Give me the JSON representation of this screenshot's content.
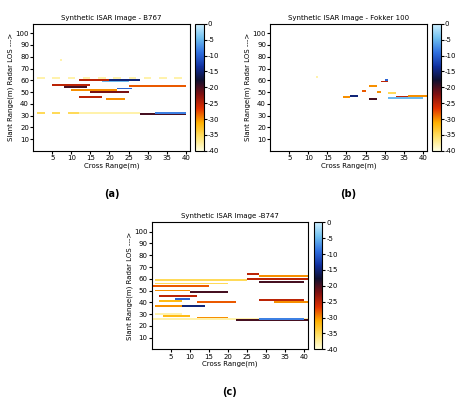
{
  "chart_data": [
    {
      "type": "heatmap",
      "title": "Synthetic ISAR Image - B767",
      "annotations": [
        "(a)"
      ],
      "xlabel": "Cross Range(m)",
      "ylabel": "Slant Range(m) Radar LOS --->",
      "xlim": [
        0,
        41
      ],
      "ylim": [
        0,
        108
      ],
      "xticks": [
        5,
        10,
        15,
        20,
        25,
        30,
        35,
        40
      ],
      "yticks": [
        10,
        20,
        30,
        40,
        50,
        60,
        70,
        80,
        90,
        100
      ],
      "colorbar_range": [
        -40,
        0
      ],
      "colorbar_ticks": [
        0,
        -5,
        -10,
        -15,
        -20,
        -25,
        -30,
        -35,
        -40
      ],
      "cells": [
        [
          1,
          3,
          62,
          -38
        ],
        [
          5,
          7,
          62,
          -38
        ],
        [
          9,
          11,
          62,
          -38
        ],
        [
          13,
          15,
          62,
          -38
        ],
        [
          17,
          19,
          62,
          -38
        ],
        [
          21,
          23,
          62,
          -38
        ],
        [
          25,
          27,
          62,
          -38
        ],
        [
          29,
          31,
          62,
          -38
        ],
        [
          33,
          35,
          62,
          -38
        ],
        [
          37,
          39,
          62,
          -38
        ],
        [
          12,
          20,
          60,
          -25
        ],
        [
          20,
          28,
          60,
          -15
        ],
        [
          18,
          25,
          59,
          -5
        ],
        [
          5,
          15,
          56,
          -25
        ],
        [
          25,
          40,
          55,
          -28
        ],
        [
          8,
          14,
          54,
          -20
        ],
        [
          10,
          22,
          52,
          -30
        ],
        [
          22,
          26,
          53,
          -10
        ],
        [
          15,
          25,
          50,
          -22
        ],
        [
          12,
          18,
          46,
          -25
        ],
        [
          19,
          24,
          44,
          -30
        ],
        [
          1,
          3,
          32,
          -35
        ],
        [
          5,
          7,
          32,
          -35
        ],
        [
          9,
          12,
          32,
          -35
        ],
        [
          12,
          28,
          32,
          -38
        ],
        [
          28,
          40,
          31,
          -20
        ],
        [
          32,
          40,
          32,
          -8
        ],
        [
          7,
          7.5,
          77,
          -38
        ]
      ]
    },
    {
      "type": "heatmap",
      "title": "Synthetic ISAR Image - Fokker 100",
      "annotations": [
        "(b)"
      ],
      "xlabel": "Cross Range(m)",
      "ylabel": "Slant Range(m) Radar LOS --->",
      "xlim": [
        0,
        41
      ],
      "ylim": [
        0,
        108
      ],
      "xticks": [
        5,
        10,
        15,
        20,
        25,
        30,
        35,
        40
      ],
      "yticks": [
        10,
        20,
        30,
        40,
        50,
        60,
        70,
        80,
        90,
        100
      ],
      "colorbar_range": [
        -40,
        0
      ],
      "colorbar_ticks": [
        0,
        -5,
        -10,
        -15,
        -20,
        -25,
        -30,
        -35,
        -40
      ],
      "cells": [
        [
          12,
          12.5,
          63,
          -38
        ],
        [
          29,
          31,
          59,
          -25
        ],
        [
          30,
          31,
          60,
          -10
        ],
        [
          26,
          28,
          55,
          -30
        ],
        [
          24,
          25,
          51,
          -28
        ],
        [
          28,
          29,
          50,
          -30
        ],
        [
          21,
          23,
          47,
          -15
        ],
        [
          19,
          21,
          46,
          -30
        ],
        [
          31,
          33,
          49,
          -35
        ],
        [
          26,
          28,
          44,
          -20
        ],
        [
          33,
          40,
          46,
          -25
        ],
        [
          31,
          40,
          45,
          -5
        ],
        [
          36,
          41,
          47,
          -30
        ]
      ]
    },
    {
      "type": "heatmap",
      "title": "Synthetic ISAR Image -B747",
      "annotations": [
        "(c)"
      ],
      "xlabel": "Cross Range(m)",
      "ylabel": "Slant Range(m) Radar LOS --->",
      "xlim": [
        0,
        41
      ],
      "ylim": [
        0,
        108
      ],
      "xticks": [
        5,
        10,
        15,
        20,
        25,
        30,
        35,
        40
      ],
      "yticks": [
        10,
        20,
        30,
        40,
        50,
        60,
        70,
        80,
        90,
        100
      ],
      "colorbar_range": [
        -40,
        0
      ],
      "colorbar_ticks": [
        0,
        -5,
        -10,
        -15,
        -20,
        -25,
        -30,
        -35,
        -40
      ],
      "cells": [
        [
          1,
          25,
          59,
          -35
        ],
        [
          25,
          28,
          64,
          -25
        ],
        [
          28,
          41,
          62,
          -30
        ],
        [
          25,
          41,
          60,
          -25
        ],
        [
          28,
          40,
          57,
          -20
        ],
        [
          1,
          20,
          56,
          -35
        ],
        [
          0,
          15,
          54,
          -28
        ],
        [
          1,
          10,
          50,
          -30
        ],
        [
          10,
          20,
          49,
          -20
        ],
        [
          2,
          12,
          45,
          -25
        ],
        [
          6,
          10,
          43,
          -10
        ],
        [
          2,
          8,
          41,
          -32
        ],
        [
          12,
          22,
          40,
          -28
        ],
        [
          28,
          40,
          42,
          -25
        ],
        [
          32,
          41,
          40,
          -30
        ],
        [
          1,
          10,
          37,
          -30
        ],
        [
          8,
          14,
          37,
          -15
        ],
        [
          1,
          8,
          30,
          -38
        ],
        [
          3,
          10,
          28,
          -32
        ],
        [
          12,
          20,
          27,
          -30
        ],
        [
          0,
          41,
          26,
          -38
        ],
        [
          22,
          41,
          25,
          -20
        ],
        [
          28,
          40,
          26,
          -8
        ]
      ]
    }
  ]
}
